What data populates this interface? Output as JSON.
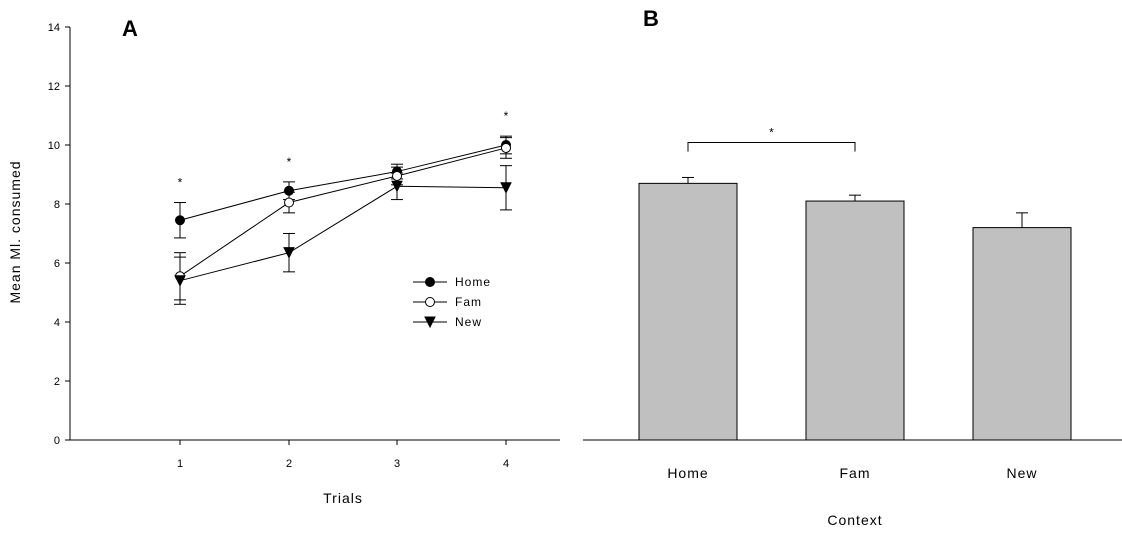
{
  "chart_data": [
    {
      "panel": "A",
      "type": "line",
      "xlabel": "Trials",
      "ylabel": "Mean Ml. consumed",
      "x": [
        1,
        2,
        3,
        4
      ],
      "xticks": [
        "1",
        "2",
        "3",
        "4"
      ],
      "ylim": [
        0,
        14
      ],
      "yticks": [
        "0",
        "2",
        "4",
        "6",
        "8",
        "10",
        "12",
        "14"
      ],
      "series": [
        {
          "name": "Home",
          "marker": "filled-circle",
          "values": [
            7.45,
            8.45,
            9.1,
            10.0
          ],
          "errors": [
            0.6,
            0.3,
            0.25,
            0.3
          ]
        },
        {
          "name": "Fam",
          "marker": "open-circle",
          "values": [
            5.55,
            8.05,
            8.95,
            9.9
          ],
          "errors": [
            0.8,
            0.35,
            0.3,
            0.35
          ]
        },
        {
          "name": "New",
          "marker": "filled-triangle-down",
          "values": [
            5.4,
            6.35,
            8.6,
            8.55
          ],
          "errors": [
            0.8,
            0.65,
            0.45,
            0.75
          ]
        }
      ],
      "annotations": [
        "*",
        "*",
        "",
        "*"
      ],
      "legend_position": "center-right"
    },
    {
      "panel": "B",
      "type": "bar",
      "xlabel": "Context",
      "ylabel": "",
      "categories": [
        "Home",
        "Fam",
        "New"
      ],
      "values": [
        8.7,
        8.1,
        7.2
      ],
      "errors": [
        0.2,
        0.2,
        0.5
      ],
      "ylim": [
        0,
        14
      ],
      "bar_color": "#c0c0c0",
      "significance": {
        "from": "Home",
        "to": "Fam",
        "label": "*"
      }
    }
  ]
}
